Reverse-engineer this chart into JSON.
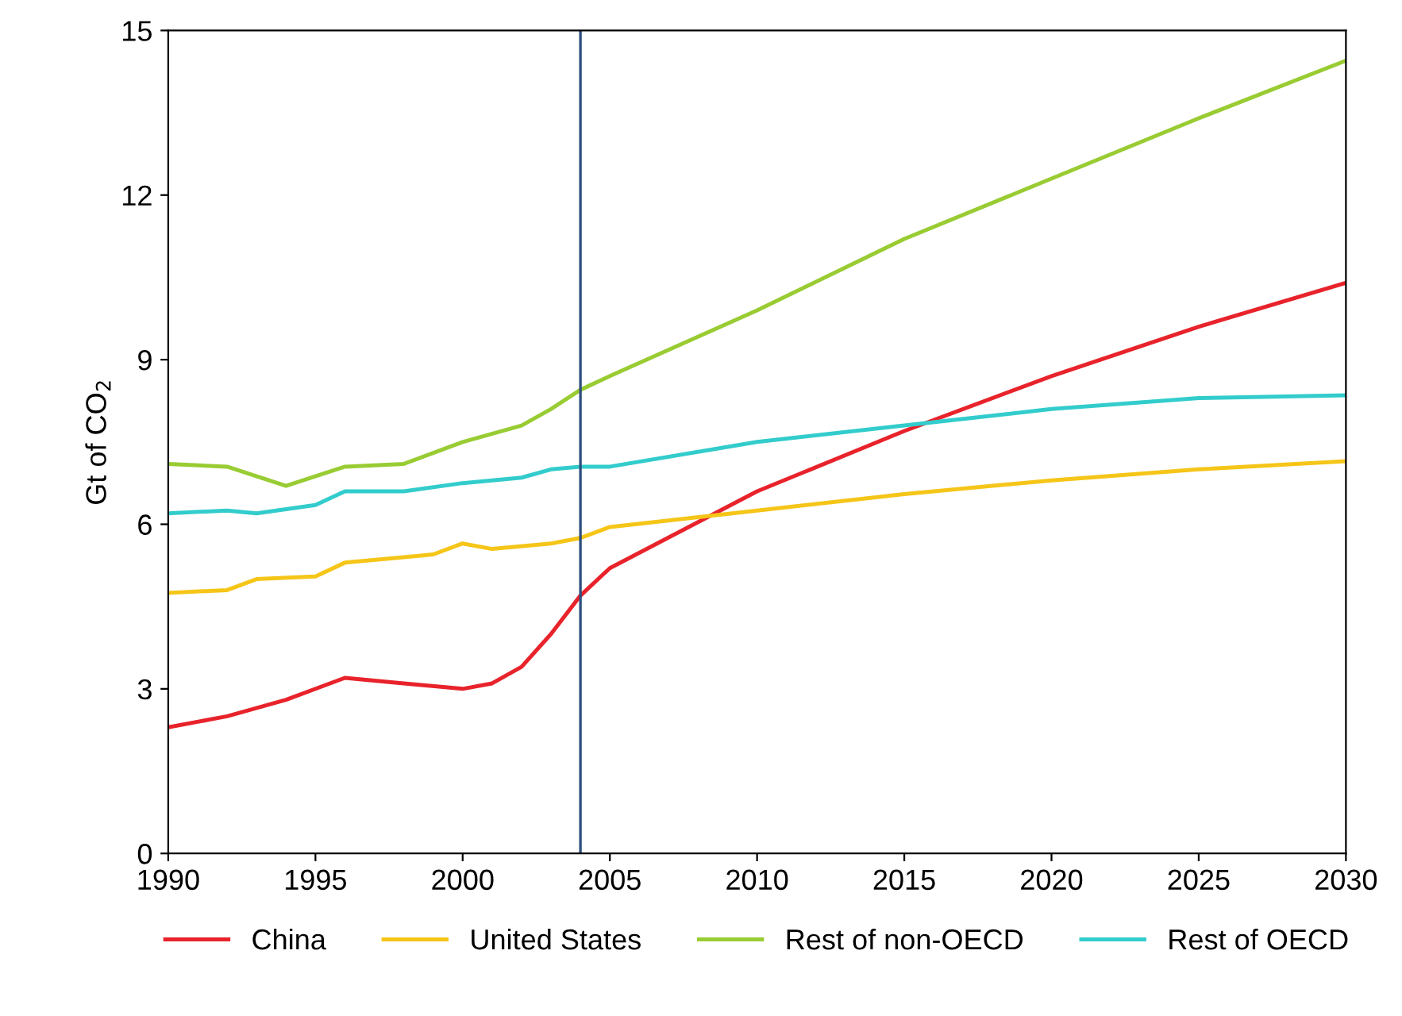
{
  "chart_data": {
    "type": "line",
    "ylabel": "Gt of CO$_{2}$",
    "series": [
      {
        "name": "China",
        "color": "#e8232b",
        "x": [
          1990,
          1992,
          1994,
          1996,
          1997,
          1998,
          2000,
          2001,
          2002,
          2003,
          2004,
          2005,
          2010,
          2015,
          2020,
          2025,
          2030
        ],
        "values": [
          2.3,
          2.5,
          2.8,
          3.2,
          3.15,
          3.1,
          3.0,
          3.1,
          3.4,
          4.0,
          4.7,
          5.2,
          6.6,
          7.7,
          8.7,
          9.6,
          10.4
        ]
      },
      {
        "name": "United States",
        "color": "#f5c518",
        "x": [
          1990,
          1992,
          1993,
          1995,
          1996,
          1998,
          1999,
          2000,
          2001,
          2003,
          2004,
          2005,
          2010,
          2015,
          2020,
          2025,
          2030
        ],
        "values": [
          4.75,
          4.8,
          5.0,
          5.05,
          5.3,
          5.4,
          5.45,
          5.65,
          5.55,
          5.65,
          5.75,
          5.95,
          6.25,
          6.55,
          6.8,
          7.0,
          7.15
        ]
      },
      {
        "name": "Rest of non-OECD",
        "color": "#99cc33",
        "x": [
          1990,
          1992,
          1994,
          1996,
          1998,
          2000,
          2002,
          2003,
          2004,
          2005,
          2010,
          2015,
          2020,
          2025,
          2030
        ],
        "values": [
          7.1,
          7.05,
          6.7,
          7.05,
          7.1,
          7.5,
          7.8,
          8.1,
          8.45,
          8.7,
          9.9,
          11.2,
          12.3,
          13.4,
          14.45
        ]
      },
      {
        "name": "Rest of OECD",
        "color": "#33cccc",
        "x": [
          1990,
          1992,
          1993,
          1995,
          1996,
          1998,
          2000,
          2002,
          2003,
          2004,
          2005,
          2010,
          2015,
          2020,
          2025,
          2030
        ],
        "values": [
          6.2,
          6.25,
          6.2,
          6.35,
          6.6,
          6.6,
          6.75,
          6.85,
          7.0,
          7.05,
          7.05,
          7.5,
          7.8,
          8.1,
          8.3,
          8.35
        ]
      }
    ],
    "xlim": [
      1990,
      2030
    ],
    "xticks": [
      1990,
      1995,
      2000,
      2005,
      2010,
      2015,
      2020,
      2025,
      2030
    ],
    "ylim": [
      0,
      15
    ],
    "yticks": [
      0,
      3,
      6,
      9,
      12,
      15
    ],
    "ref_lines": [
      {
        "axis": "x",
        "value": 2004,
        "color": "#2f4f7f"
      }
    ],
    "grid": false,
    "legend": "bottom"
  }
}
